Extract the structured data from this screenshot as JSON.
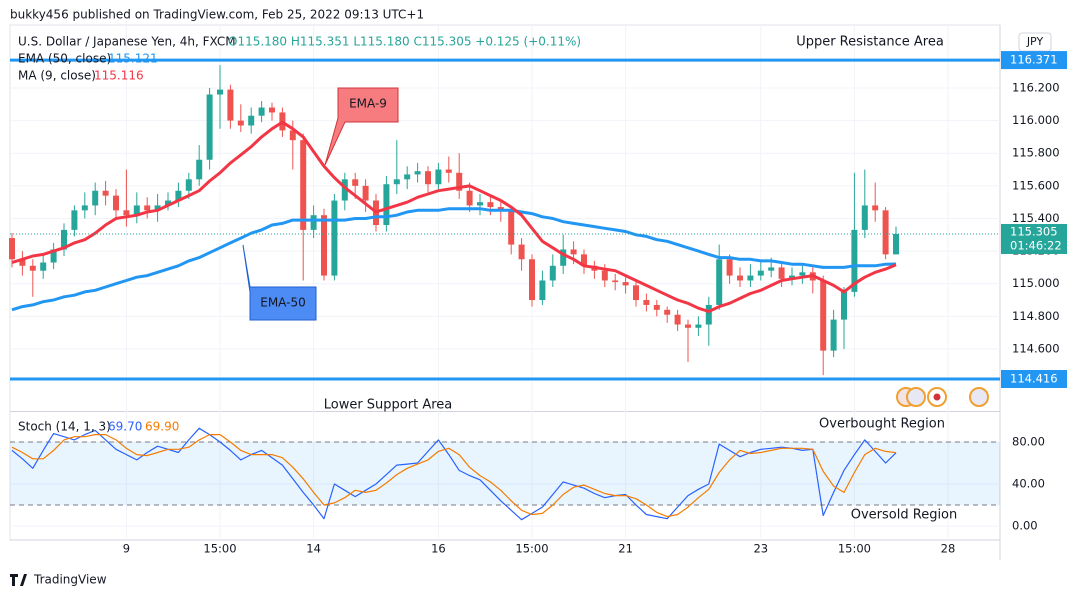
{
  "header": {
    "publisher": "bukky456 published on TradingView.com, Feb 25, 2022 09:13 UTC+1",
    "footer": "TradingView",
    "currency": "JPY"
  },
  "chart_data": [
    {
      "type": "candlestick",
      "title": "U.S. Dollar / Japanese Yen, 4h, FXCM",
      "ohlc_label": "O115.180 H115.351 L115.180 C115.305 +0.125 (+0.11%)",
      "up_color": "#26a69a",
      "down_color": "#ef5350",
      "categories": [
        null,
        null,
        null,
        null,
        null,
        null,
        null,
        null,
        null,
        null,
        null,
        "9",
        null,
        null,
        null,
        null,
        null,
        null,
        null,
        null,
        "15:00",
        null,
        null,
        null,
        null,
        null,
        null,
        null,
        null,
        "14",
        null,
        null,
        null,
        null,
        null,
        null,
        null,
        null,
        null,
        null,
        null,
        "16",
        null,
        null,
        null,
        null,
        null,
        null,
        null,
        null,
        "15:00",
        null,
        null,
        null,
        null,
        null,
        null,
        null,
        null,
        "21",
        null,
        null,
        null,
        null,
        null,
        null,
        null,
        null,
        null,
        null,
        null,
        null,
        "23",
        null,
        null,
        null,
        null,
        null,
        null,
        null,
        null,
        "15:00",
        null,
        null,
        null,
        null,
        null,
        null,
        null,
        null,
        "28"
      ],
      "open": [
        115.28,
        115.15,
        115.11,
        115.08,
        115.13,
        115.21,
        115.33,
        115.45,
        115.48,
        115.57,
        115.54,
        115.45,
        115.42,
        115.48,
        115.45,
        115.48,
        115.51,
        115.57,
        115.64,
        115.76,
        116.16,
        116.19,
        116.0,
        115.97,
        116.03,
        116.08,
        116.05,
        115.94,
        115.88,
        115.33,
        115.42,
        115.05,
        115.51,
        115.64,
        115.6,
        115.51,
        115.36,
        115.61,
        115.64,
        115.67,
        115.69,
        115.61,
        115.7,
        115.68,
        115.57,
        115.48,
        115.5,
        115.47,
        115.45,
        115.24,
        115.15,
        114.9,
        115.02,
        115.11,
        115.21,
        115.18,
        115.11,
        115.08,
        115.02,
        115.01,
        114.99,
        114.9,
        114.87,
        114.84,
        114.81,
        114.75,
        114.73,
        114.75,
        114.87,
        115.15,
        115.05,
        115.02,
        115.05,
        115.08,
        115.1,
        115.03,
        115.05,
        115.07,
        115.02,
        114.59,
        114.78,
        114.95,
        115.33,
        115.48,
        115.45,
        115.18,
        null,
        null,
        null,
        null,
        null
      ],
      "high": [
        115.31,
        115.2,
        115.15,
        115.18,
        115.25,
        115.37,
        115.48,
        115.56,
        115.62,
        115.63,
        115.58,
        115.7,
        115.56,
        115.53,
        115.55,
        115.56,
        115.62,
        115.68,
        115.85,
        116.2,
        116.34,
        116.22,
        116.1,
        116.08,
        116.12,
        116.11,
        116.08,
        116.0,
        115.92,
        115.48,
        115.46,
        115.55,
        115.68,
        115.68,
        115.64,
        115.55,
        115.66,
        115.88,
        115.72,
        115.74,
        115.72,
        115.74,
        115.78,
        115.8,
        115.62,
        115.55,
        115.54,
        115.5,
        115.48,
        115.28,
        115.18,
        115.08,
        115.18,
        115.3,
        115.26,
        115.21,
        115.14,
        115.12,
        115.06,
        115.04,
        115.02,
        114.94,
        114.9,
        114.86,
        114.84,
        114.78,
        114.8,
        114.92,
        115.24,
        115.18,
        115.1,
        115.12,
        115.14,
        115.16,
        115.13,
        115.1,
        115.12,
        115.1,
        115.05,
        114.84,
        114.98,
        115.68,
        115.7,
        115.62,
        115.47,
        115.351,
        null,
        null,
        null,
        null,
        null
      ],
      "low": [
        115.1,
        115.05,
        114.92,
        115.03,
        115.09,
        115.17,
        115.29,
        115.4,
        115.42,
        115.48,
        115.39,
        115.35,
        115.37,
        115.4,
        115.38,
        115.45,
        115.47,
        115.52,
        115.6,
        115.7,
        115.95,
        115.95,
        115.93,
        115.92,
        115.99,
        116.0,
        115.9,
        115.7,
        115.02,
        115.28,
        115.02,
        115.02,
        115.45,
        115.52,
        115.44,
        115.32,
        115.32,
        115.55,
        115.58,
        115.62,
        115.56,
        115.58,
        115.62,
        115.52,
        115.44,
        115.42,
        115.42,
        115.38,
        115.18,
        115.08,
        114.86,
        114.87,
        114.98,
        115.06,
        115.12,
        115.06,
        115.03,
        114.98,
        114.96,
        114.94,
        114.86,
        114.83,
        114.8,
        114.76,
        114.71,
        114.52,
        114.68,
        114.62,
        114.84,
        115.0,
        114.98,
        114.98,
        115.02,
        115.04,
        114.98,
        114.99,
        115.0,
        114.94,
        114.44,
        114.55,
        114.6,
        114.92,
        115.28,
        115.38,
        115.15,
        115.18,
        null,
        null,
        null,
        null,
        null
      ],
      "close": [
        115.15,
        115.11,
        115.08,
        115.13,
        115.21,
        115.33,
        115.45,
        115.48,
        115.57,
        115.54,
        115.45,
        115.42,
        115.48,
        115.45,
        115.48,
        115.51,
        115.57,
        115.64,
        115.76,
        116.16,
        116.19,
        116.0,
        115.97,
        116.03,
        116.08,
        116.05,
        115.94,
        115.88,
        115.33,
        115.42,
        115.05,
        115.51,
        115.64,
        115.6,
        115.51,
        115.36,
        115.61,
        115.64,
        115.67,
        115.69,
        115.61,
        115.7,
        115.68,
        115.57,
        115.48,
        115.5,
        115.47,
        115.45,
        115.24,
        115.15,
        114.9,
        115.02,
        115.11,
        115.21,
        115.18,
        115.11,
        115.08,
        115.02,
        115.01,
        114.99,
        114.9,
        114.87,
        114.84,
        114.81,
        114.75,
        114.73,
        114.75,
        114.87,
        115.15,
        115.05,
        115.02,
        115.05,
        115.08,
        115.1,
        115.03,
        115.05,
        115.07,
        115.02,
        114.59,
        114.78,
        114.95,
        115.33,
        115.48,
        115.45,
        115.18,
        115.305,
        null,
        null,
        null,
        null,
        null
      ],
      "countdown": "01:46:22",
      "series": [
        {
          "name": "EMA (50, close)",
          "color": "#2196f3",
          "legend_label": "115.121",
          "values": [
            114.84,
            114.86,
            114.87,
            114.89,
            114.9,
            114.92,
            114.93,
            114.95,
            114.96,
            114.98,
            115.0,
            115.02,
            115.04,
            115.05,
            115.07,
            115.09,
            115.11,
            115.14,
            115.16,
            115.19,
            115.22,
            115.25,
            115.28,
            115.31,
            115.33,
            115.36,
            115.37,
            115.39,
            115.39,
            115.39,
            115.39,
            115.39,
            115.39,
            115.4,
            115.4,
            115.41,
            115.41,
            115.42,
            115.44,
            115.45,
            115.45,
            115.45,
            115.46,
            115.46,
            115.46,
            115.46,
            115.45,
            115.45,
            115.45,
            115.44,
            115.43,
            115.41,
            115.4,
            115.38,
            115.37,
            115.36,
            115.35,
            115.34,
            115.33,
            115.32,
            115.3,
            115.29,
            115.27,
            115.26,
            115.24,
            115.22,
            115.2,
            115.18,
            115.16,
            115.16,
            115.15,
            115.15,
            115.14,
            115.14,
            115.13,
            115.12,
            115.12,
            115.11,
            115.1,
            115.1,
            115.1,
            115.11,
            115.11,
            115.11,
            115.12,
            115.121,
            null,
            null,
            null,
            null,
            null
          ]
        },
        {
          "name": "MA (9, close)",
          "color": "#f23645",
          "legend_label": "115.116",
          "values": [
            115.13,
            115.15,
            115.17,
            115.18,
            115.2,
            115.22,
            115.25,
            115.27,
            115.31,
            115.36,
            115.4,
            115.41,
            115.42,
            115.44,
            115.45,
            115.48,
            115.51,
            115.54,
            115.57,
            115.63,
            115.68,
            115.74,
            115.79,
            115.84,
            115.9,
            115.95,
            115.99,
            115.95,
            115.9,
            115.81,
            115.72,
            115.65,
            115.59,
            115.54,
            115.49,
            115.44,
            115.46,
            115.48,
            115.5,
            115.53,
            115.55,
            115.57,
            115.58,
            115.59,
            115.6,
            115.57,
            115.54,
            115.51,
            115.47,
            115.42,
            115.34,
            115.26,
            115.22,
            115.18,
            115.15,
            115.11,
            115.1,
            115.09,
            115.08,
            115.05,
            115.02,
            114.99,
            114.96,
            114.93,
            114.9,
            114.88,
            114.85,
            114.83,
            114.86,
            114.88,
            114.91,
            114.94,
            114.96,
            114.99,
            115.02,
            115.03,
            115.04,
            115.05,
            115.02,
            114.99,
            114.95,
            115.0,
            115.04,
            115.07,
            115.09,
            115.116,
            null,
            null,
            null,
            null,
            null
          ]
        }
      ],
      "hlines": [
        {
          "value": 116.371,
          "color": "#2196f3",
          "name": "Upper Resistance Area"
        },
        {
          "value": 114.416,
          "color": "#2196f3",
          "name": "Lower Support Area"
        }
      ],
      "annotations": [
        "EMA-9",
        "EMA-50"
      ],
      "ylim": [
        114.226,
        116.586
      ],
      "yticks": [
        {
          "value": 114.6,
          "label": "114.600"
        },
        {
          "value": 114.8,
          "label": "114.800"
        },
        {
          "value": 115.0,
          "label": "115.000"
        },
        {
          "value": 115.2,
          "label": "115.200"
        },
        {
          "value": 115.4,
          "label": "115.400"
        },
        {
          "value": 115.6,
          "label": "115.600"
        },
        {
          "value": 115.8,
          "label": "115.800"
        },
        {
          "value": 116.0,
          "label": "116.000"
        },
        {
          "value": 116.2,
          "label": "116.200"
        }
      ],
      "grid": true
    },
    {
      "type": "line",
      "title": "Stoch (14, 1, 3)",
      "series": [
        {
          "color": "#2962ff",
          "legend_label": "69.70",
          "values": [
            72,
            64,
            55,
            72,
            88,
            85,
            82,
            87,
            91,
            82,
            73,
            68,
            63,
            70,
            76,
            73,
            70,
            82,
            93,
            87,
            80,
            72,
            63,
            68,
            72,
            65,
            58,
            45,
            32,
            20,
            7,
            40,
            34,
            28,
            34,
            40,
            49,
            58,
            59,
            60,
            71,
            82,
            68,
            53,
            48,
            44,
            34,
            24,
            15,
            6,
            12,
            18,
            30,
            42,
            39,
            36,
            31,
            27,
            29,
            30,
            20,
            11,
            9,
            7,
            18,
            29,
            35,
            40,
            78,
            72,
            66,
            70,
            73,
            74,
            75,
            74,
            72,
            73,
            10,
            32,
            53,
            68,
            82,
            71,
            60,
            69.7,
            null,
            null,
            null,
            null,
            null
          ]
        },
        {
          "color": "#f57c00",
          "legend_label": "69.90",
          "values": [
            75,
            70,
            64,
            64,
            72,
            82,
            85,
            85,
            87,
            87,
            82,
            74,
            68,
            67,
            70,
            73,
            73,
            75,
            82,
            87,
            87,
            80,
            72,
            68,
            68,
            68,
            65,
            56,
            45,
            32,
            20,
            22,
            27,
            34,
            32,
            34,
            41,
            49,
            55,
            59,
            63,
            71,
            74,
            68,
            56,
            48,
            42,
            34,
            24,
            15,
            11,
            12,
            20,
            30,
            37,
            39,
            35,
            31,
            29,
            29,
            26,
            20,
            13,
            9,
            11,
            18,
            27,
            35,
            51,
            63,
            72,
            69,
            70,
            72,
            74,
            74,
            74,
            73,
            52,
            38,
            32,
            51,
            68,
            74,
            71,
            69.9,
            null,
            null,
            null,
            null,
            null
          ]
        }
      ],
      "levels": [
        80,
        20
      ],
      "level_labels": [
        "Overbought Region",
        "Oversold Region"
      ],
      "ylim": [
        -13.3,
        107.6
      ],
      "yticks": [
        {
          "value": 0,
          "label": "0.00"
        },
        {
          "value": 40,
          "label": "40.00"
        },
        {
          "value": 80,
          "label": "80.00"
        }
      ]
    }
  ]
}
